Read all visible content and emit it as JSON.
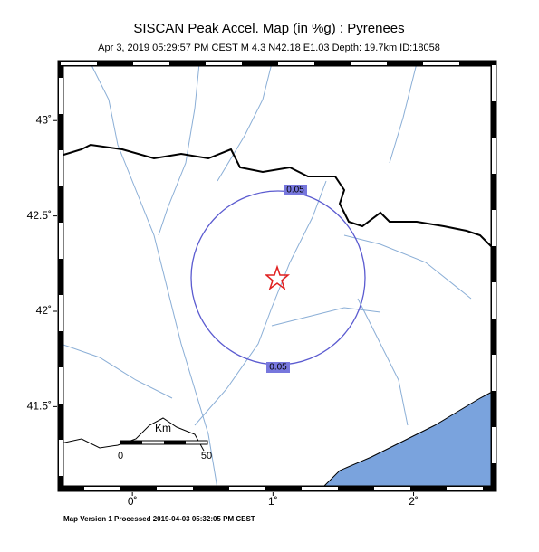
{
  "map": {
    "title": "SISCAN Peak Accel. Map (in %g) : Pyrenees",
    "subtitle": "Apr  3, 2019 05:29:57 PM CEST   M 4.3   N42.18 E1.03   Depth: 19.7km   ID:18058",
    "xlim": [
      -0.51,
      2.57
    ],
    "ylim": [
      41.07,
      43.3
    ],
    "xticks": [
      {
        "value": 0,
        "label": "0˚"
      },
      {
        "value": 1,
        "label": "1˚"
      },
      {
        "value": 2,
        "label": "2˚"
      }
    ],
    "yticks": [
      {
        "value": 41.5,
        "label": "41.5˚"
      },
      {
        "value": 42,
        "label": "42˚"
      },
      {
        "value": 42.5,
        "label": "42.5˚"
      },
      {
        "value": 43,
        "label": "43˚"
      }
    ],
    "contour_labels": [
      "0.05",
      "0.05"
    ],
    "scale": {
      "unit": "Km",
      "start": "0",
      "end": "50"
    },
    "footer": "Map Version 1 Processed 2019-04-03 05:32:05 PM CEST"
  }
}
